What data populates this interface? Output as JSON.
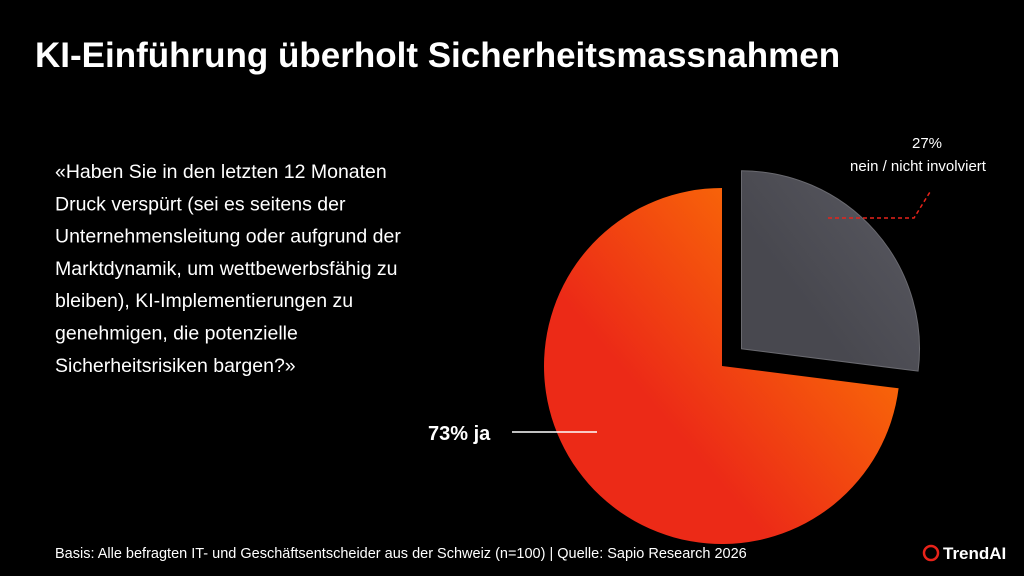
{
  "chart_data": {
    "type": "pie",
    "title": "KI-Einführung überholt Sicherheitsmassnahmen",
    "categories": [
      "nein / nicht involviert",
      "ja"
    ],
    "values": [
      27,
      73
    ],
    "value_labels": [
      "27%",
      "73%"
    ],
    "colors": [
      "#48484f",
      "#ec2a17"
    ]
  },
  "question": [
    "«Haben Sie in den letzten 12 Monaten",
    "Druck verspürt (sei es seitens der",
    "Unternehmensleitung oder aufgrund der",
    "Marktdynamik, um wettbewerbsfähig zu",
    "bleiben), KI-Implementierungen zu",
    "genehmigen, die potenzielle",
    "Sicherheitsrisiken bargen?»"
  ],
  "footnote": "Basis: Alle befragten IT- und Geschäftsentscheider aus der Schweiz (n=100) | Quelle: Sapio Research 2026",
  "logo": "TrendAI"
}
